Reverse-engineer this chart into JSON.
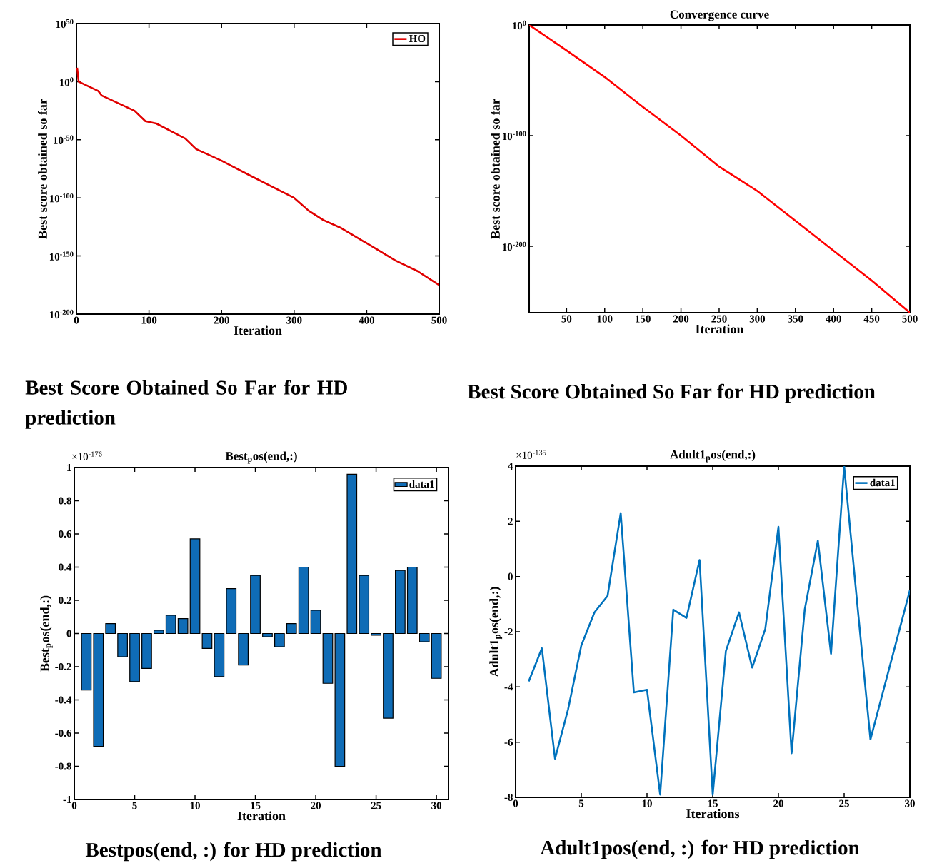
{
  "chart_data": [
    {
      "type": "line",
      "xlabel": "Iteration",
      "ylabel": "Best score obtained so far",
      "log": "y",
      "legend": "top right",
      "xlim": [
        0,
        500
      ],
      "xticks": [
        0,
        100,
        200,
        300,
        400,
        500
      ],
      "ylim": [
        1e-200,
        1e+50
      ],
      "yticks": [
        {
          "value": 1e-200,
          "label": "10$^{-200}$"
        },
        {
          "value": 1e-150,
          "label": "10$^{-150}$"
        },
        {
          "value": 1e-100,
          "label": "10$^{-100}$"
        },
        {
          "value": 1e-50,
          "label": "10$^{-50}$"
        },
        {
          "value": 1,
          "label": "10$^{0}$"
        },
        {
          "value": 1e+50,
          "label": "10$^{50}$"
        }
      ],
      "x": [
        1,
        3,
        30,
        35,
        80,
        95,
        110,
        150,
        165,
        200,
        240,
        300,
        320,
        340,
        365,
        400,
        440,
        470,
        500
      ],
      "series": [
        {
          "name": "HO",
          "color": "#e00000",
          "values": [
            1000000000000.0,
            1,
            1e-08,
            1e-12,
            1e-25,
            1e-34,
            1e-36,
            1e-49,
            1e-58,
            1e-68,
            1e-81,
            1e-100,
            1e-111,
            1e-119,
            1e-126,
            1e-139,
            1e-154,
            1e-163,
            1e-175
          ]
        }
      ],
      "annotations": [
        "Best Score Obtained So Far for HD prediction"
      ]
    },
    {
      "type": "line",
      "title": "Convergence curve",
      "xlabel": "Iteration",
      "ylabel": "Best score obtained so far",
      "log": "y",
      "xlim": [
        1,
        500
      ],
      "xticks": [
        50,
        100,
        150,
        200,
        250,
        300,
        350,
        400,
        450,
        500
      ],
      "ylim": [
        1e-260,
        1
      ],
      "yticks": [
        {
          "value": 1e-200,
          "label": "10$^{-200}$"
        },
        {
          "value": 1e-100,
          "label": "10$^{-100}$"
        },
        {
          "value": 1,
          "label": "10$^{0}$"
        }
      ],
      "x": [
        1,
        50,
        100,
        150,
        200,
        250,
        300,
        350,
        400,
        450,
        500
      ],
      "series": [
        {
          "color": "#ff0000",
          "values": [
            1,
            1e-23,
            1e-47,
            1e-74,
            1e-100,
            1e-128,
            1e-150,
            1e-177,
            1e-204,
            1e-231,
            1e-260
          ]
        }
      ],
      "annotations": [
        "Best Score Obtained So Far for HD prediction"
      ]
    },
    {
      "type": "bar",
      "title": "Best$_{p}$os(end,:)",
      "xlabel": "Iteration",
      "ylabel": "Best$_{p}$os(end,:)",
      "legend": "top right",
      "xlim": [
        0,
        31
      ],
      "xticks": [
        0,
        5,
        10,
        15,
        20,
        25,
        30
      ],
      "ylim": [
        -1,
        1
      ],
      "yticks": [
        -1,
        -0.8,
        -0.6,
        -0.4,
        -0.2,
        0,
        0.2,
        0.4,
        0.6,
        0.8,
        1
      ],
      "x": [
        1,
        2,
        3,
        4,
        5,
        6,
        7,
        8,
        9,
        10,
        11,
        12,
        13,
        14,
        15,
        16,
        17,
        18,
        19,
        20,
        21,
        22,
        23,
        24,
        25,
        26,
        27,
        28,
        29,
        30
      ],
      "series": [
        {
          "name": "data1",
          "color": "#0f6cb6",
          "values": [
            -0.34,
            -0.68,
            0.06,
            -0.14,
            -0.29,
            -0.21,
            0.02,
            0.11,
            0.09,
            0.57,
            -0.09,
            -0.26,
            0.27,
            -0.19,
            0.35,
            -0.02,
            -0.08,
            0.06,
            0.4,
            0.14,
            -0.3,
            -0.8,
            0.96,
            0.35,
            -0.01,
            -0.51,
            0.38,
            0.4,
            -0.05,
            -0.27
          ]
        }
      ],
      "annotations": [
        "×10$^{-176}$",
        "Bestpos(end, :) for HD prediction"
      ]
    },
    {
      "type": "line",
      "title": "Adult1$_{p}$os(end,:)",
      "xlabel": "Iterations",
      "ylabel": "Adult1$_{p}$os(end,:)",
      "legend": "top right",
      "xlim": [
        0,
        30
      ],
      "xticks": [
        0,
        5,
        10,
        15,
        20,
        25,
        30
      ],
      "ylim": [
        -8,
        4
      ],
      "yticks": [
        -8,
        -6,
        -4,
        -2,
        0,
        2,
        4
      ],
      "x": [
        1,
        2,
        3,
        4,
        5,
        6,
        7,
        8,
        9,
        10,
        11,
        12,
        13,
        14,
        15,
        16,
        17,
        18,
        19,
        20,
        21,
        22,
        23,
        24,
        25,
        26,
        27,
        28,
        29,
        30
      ],
      "series": [
        {
          "name": "data1",
          "color": "#0072bd",
          "values": [
            -3.8,
            -2.6,
            -6.6,
            -4.8,
            -2.5,
            -1.3,
            -0.7,
            2.3,
            -4.2,
            -4.1,
            -7.9,
            -1.2,
            -1.5,
            0.6,
            -7.9,
            -2.7,
            -1.3,
            -3.3,
            -1.9,
            1.8,
            -6.4,
            -1.2,
            1.3,
            -2.8,
            4.0,
            -1.0,
            -5.9,
            -4.1,
            -2.3,
            -0.5
          ]
        }
      ],
      "annotations": [
        "×10$^{-135}$",
        "Adult1pos(end, :) for HD prediction"
      ]
    }
  ]
}
